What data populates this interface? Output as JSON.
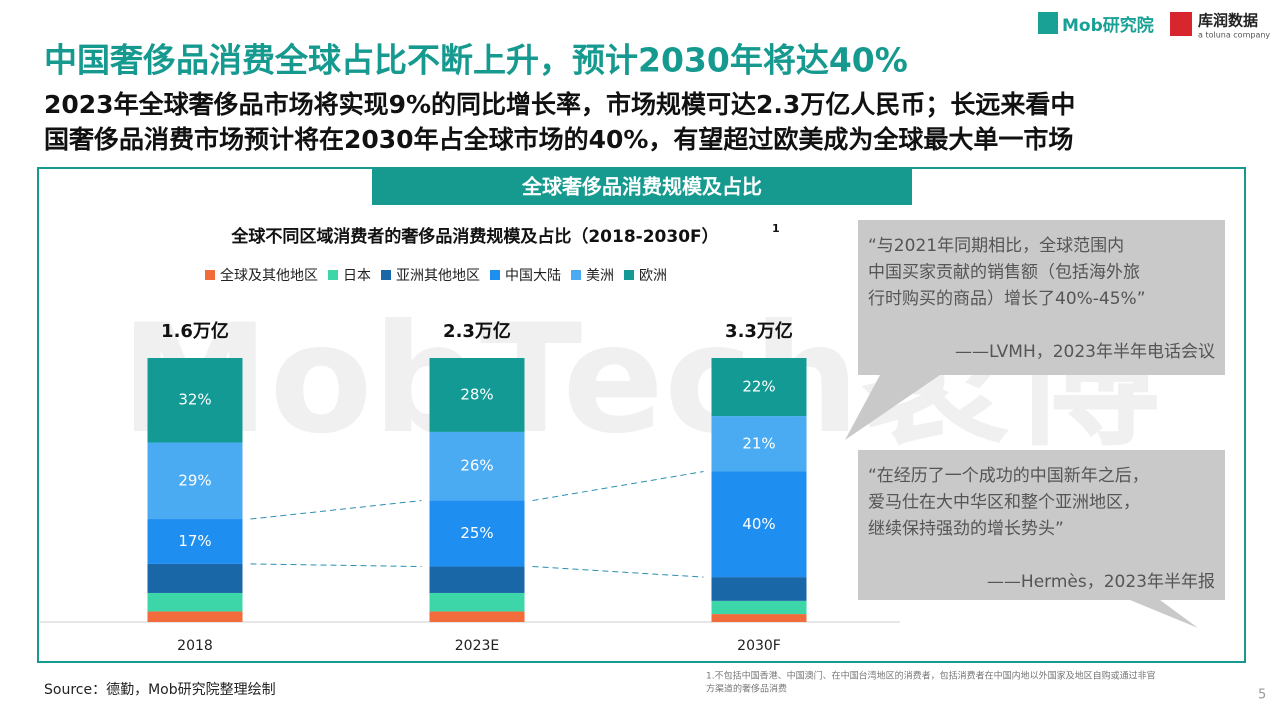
{
  "header": {
    "title": "中国奢侈品消费全球占比不断上升，预计2030年将达40%",
    "subtitle_lines": [
      "2023年全球奢侈品市场将实现9%的同比增长率，市场规模可达2.3万亿人民币；长远来看中",
      "国奢侈品消费市场预计将在2030年占全球市场的40%，有望超过欧美成为全球最大单一市场"
    ],
    "logo_left": "Mob研究院",
    "logo_right": "库润数据",
    "logo_right_sub": "a toluna company"
  },
  "section_title": "全球奢侈品消费规模及占比",
  "watermark": "MobTech袤博",
  "chart_data": {
    "type": "stacked_bar",
    "title": "全球不同区域消费者的奢侈品消费规模及占比（2018-2030F）",
    "title_note": "1",
    "legend": "top",
    "categories": [
      "2018",
      "2023E",
      "2030F"
    ],
    "total_labels": [
      "1.6万亿",
      "2.3万亿",
      "3.3万亿"
    ],
    "series": [
      {
        "name": "全球及其他地区",
        "color": "#f26b3a",
        "values": [
          4,
          4,
          3
        ],
        "value_labels": [
          null,
          null,
          null
        ]
      },
      {
        "name": "日本",
        "color": "#3dd6a8",
        "values": [
          7,
          7,
          5
        ],
        "value_labels": [
          null,
          null,
          null
        ]
      },
      {
        "name": "亚洲其他地区",
        "color": "#1a67a8",
        "values": [
          11,
          10,
          9
        ],
        "value_labels": [
          null,
          null,
          null
        ]
      },
      {
        "name": "中国大陆",
        "color": "#1e8ef0",
        "values": [
          17,
          25,
          40
        ],
        "value_labels": [
          "17%",
          "25%",
          "40%"
        ]
      },
      {
        "name": "美洲",
        "color": "#4aabf3",
        "values": [
          29,
          26,
          21
        ],
        "value_labels": [
          "29%",
          "26%",
          "21%"
        ]
      },
      {
        "name": "欧洲",
        "color": "#139a94",
        "values": [
          32,
          28,
          22
        ],
        "value_labels": [
          "32%",
          "28%",
          "22%"
        ]
      }
    ]
  },
  "quotes": [
    {
      "lines": [
        "“与2021年同期相比，全球范围内",
        "中国买家贡献的销售额（包括海外旅",
        "行时购买的商品）增长了40%-45%”"
      ],
      "source": "——LVMH，2023年半年电话会议"
    },
    {
      "lines": [
        "“在经历了一个成功的中国新年之后，",
        "爱马仕在大中华区和整个亚洲地区，",
        "继续保持强劲的增长势头”"
      ],
      "source": "——Hermès，2023年半年报"
    }
  ],
  "footer": {
    "source": "Source：德勤，Mob研究院整理绘制",
    "footnote_lines": [
      "1.不包括中国香港、中国澳门、在中国台湾地区的消费者，包括消费者在中国内地以外国家及地区自购或通过非官",
      "方渠道的奢侈品消费"
    ],
    "page": "5"
  }
}
